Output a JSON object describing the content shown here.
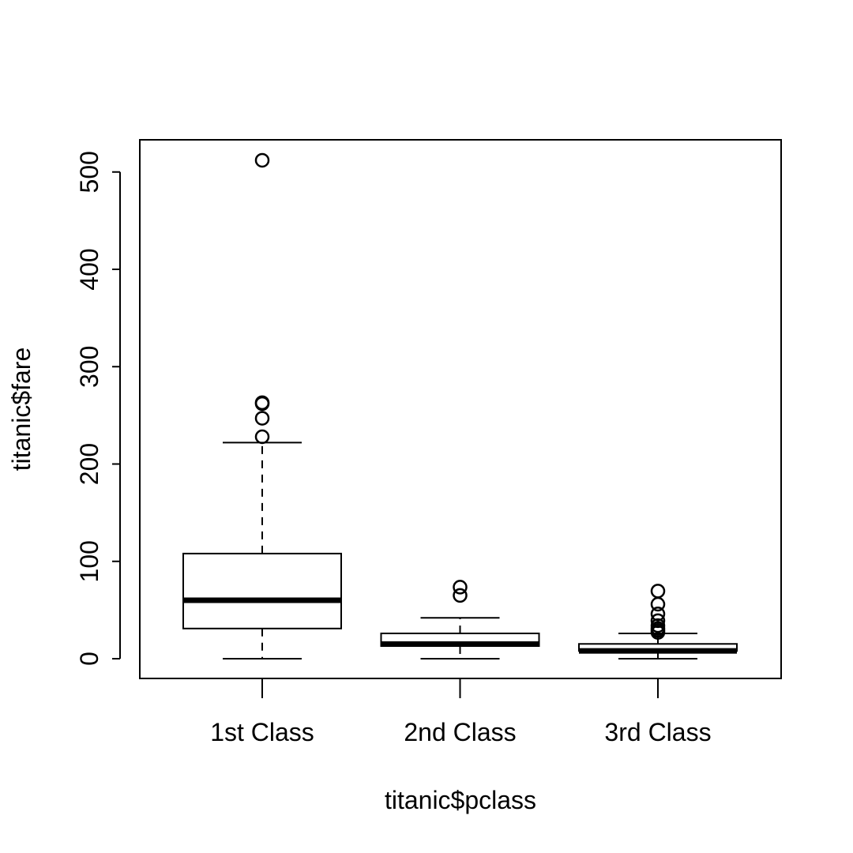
{
  "chart_data": {
    "type": "box",
    "title": "",
    "xlabel": "titanic$pclass",
    "ylabel": "titanic$fare",
    "ylim": [
      -20,
      533
    ],
    "yticks": [
      0,
      100,
      200,
      300,
      400,
      500
    ],
    "grid": false,
    "categories": [
      "1st Class",
      "2nd Class",
      "3rd Class"
    ],
    "boxes": [
      {
        "category": "1st Class",
        "whisker_low": 0,
        "q1": 31,
        "median": 60,
        "q3": 108,
        "whisker_high": 222,
        "outliers": [
          228,
          247,
          262,
          263,
          512
        ]
      },
      {
        "category": "2nd Class",
        "whisker_low": 0,
        "q1": 13,
        "median": 15,
        "q3": 26,
        "whisker_high": 42,
        "outliers": [
          65,
          73.5
        ]
      },
      {
        "category": "3rd Class",
        "whisker_low": 0,
        "q1": 8,
        "median": 8.05,
        "q3": 15.2,
        "whisker_high": 26,
        "outliers": [
          27,
          29,
          31,
          34,
          39,
          46,
          56,
          69.5
        ]
      }
    ]
  }
}
